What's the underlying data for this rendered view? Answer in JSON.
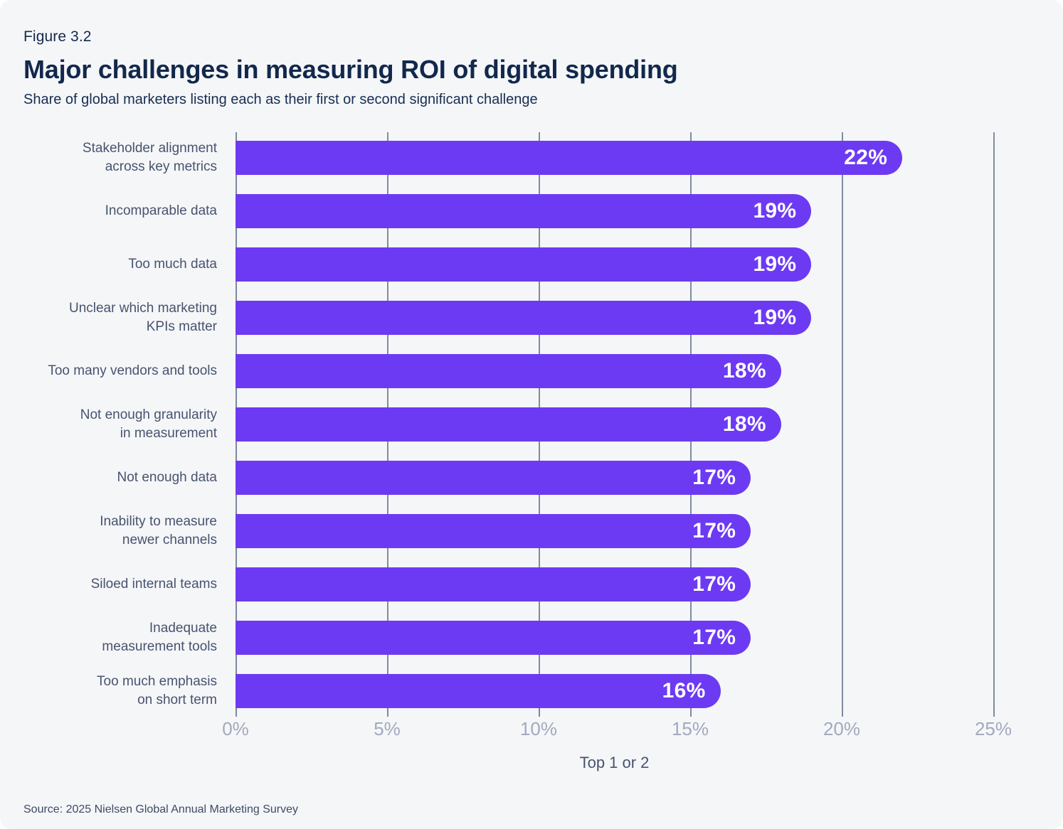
{
  "page": {
    "background_color": "#ffffff",
    "card_color": "#f5f6f8"
  },
  "header": {
    "figure_label": "Figure 3.2",
    "title": "Major challenges in measuring ROI of digital spending",
    "subtitle": "Share of global marketers listing each as their first or second significant challenge"
  },
  "chart_data": {
    "type": "bar",
    "orientation": "horizontal",
    "title": "Major challenges in measuring ROI of digital spending",
    "subtitle": "Share of global marketers listing each as their first or second significant challenge",
    "categories": [
      "Stakeholder alignment\nacross key metrics",
      "Incomparable data",
      "Too much data",
      "Unclear which marketing\nKPIs matter",
      "Too many vendors and tools",
      "Not enough granularity\nin measurement",
      "Not enough data",
      "Inability to measure\nnewer channels",
      "Siloed internal teams",
      "Inadequate\nmeasurement tools",
      "Too much emphasis\non short term"
    ],
    "values": [
      22,
      19,
      19,
      19,
      18,
      18,
      17,
      17,
      17,
      17,
      16
    ],
    "value_labels": [
      "22%",
      "19%",
      "19%",
      "19%",
      "18%",
      "18%",
      "17%",
      "17%",
      "17%",
      "17%",
      "16%"
    ],
    "xlabel": "Top 1 or 2",
    "ylabel": "",
    "xlim": [
      0,
      25
    ],
    "x_ticks": [
      0,
      5,
      10,
      15,
      20,
      25
    ],
    "x_tick_labels": [
      "0%",
      "5%",
      "10%",
      "15%",
      "20%",
      "25%"
    ],
    "grid": "vertical",
    "legend": null,
    "bar_color": "#6d3af3",
    "value_label_color": "#ffffff",
    "category_label_color": "#47536e",
    "tick_label_color": "#a3a9be",
    "gridline_color": "#828ba0"
  },
  "footer": {
    "source": "Source: 2025 Nielsen Global Annual Marketing Survey"
  }
}
